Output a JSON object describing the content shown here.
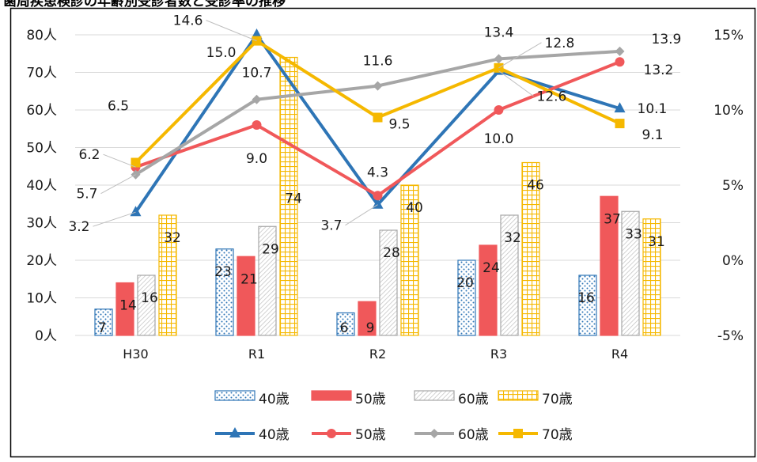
{
  "title": "歯周疾患検診の年齢別受診者数と受診率の推移",
  "colors": {
    "age40": "#2E75B6",
    "age50": "#F0585A",
    "age60": "#A6A6A6",
    "age70": "#F5B800",
    "grid": "#D9D9D9",
    "text": "#1a1a1a"
  },
  "chart_data": {
    "type": "bar",
    "categories": [
      "H30",
      "R1",
      "R2",
      "R3",
      "R4"
    ],
    "series": [
      {
        "name": "40歳",
        "values": [
          7,
          23,
          6,
          20,
          16
        ]
      },
      {
        "name": "50歳",
        "values": [
          14,
          21,
          9,
          24,
          37
        ]
      },
      {
        "name": "60歳",
        "values": [
          16,
          29,
          28,
          32,
          33
        ]
      },
      {
        "name": "70歳",
        "values": [
          32,
          74,
          40,
          46,
          31
        ]
      }
    ],
    "rate_series": [
      {
        "name": "40歳",
        "values": [
          3.2,
          15.0,
          3.7,
          12.6,
          10.1
        ]
      },
      {
        "name": "50歳",
        "values": [
          6.2,
          9.0,
          4.3,
          10.0,
          13.2
        ]
      },
      {
        "name": "60歳",
        "values": [
          5.7,
          10.7,
          11.6,
          13.4,
          13.9
        ]
      },
      {
        "name": "70歳",
        "values": [
          6.5,
          14.6,
          9.5,
          12.8,
          9.1
        ]
      }
    ],
    "rate_labels": [
      [
        "3.2",
        "15.0",
        "3.7",
        "12.6",
        "10.1"
      ],
      [
        "6.2",
        "9.0",
        "4.3",
        "10.0",
        "13.2"
      ],
      [
        "5.7",
        "10.7",
        "11.6",
        "13.4",
        "13.9"
      ],
      [
        "6.5",
        "14.6",
        "9.5",
        "12.8",
        "9.1"
      ]
    ],
    "y_left": {
      "min": 0,
      "max": 80,
      "step": 10,
      "unit": "人"
    },
    "y_right": {
      "min": -5,
      "max": 15,
      "step": 5,
      "unit": "%"
    },
    "grid": true,
    "legend": "bottom"
  }
}
